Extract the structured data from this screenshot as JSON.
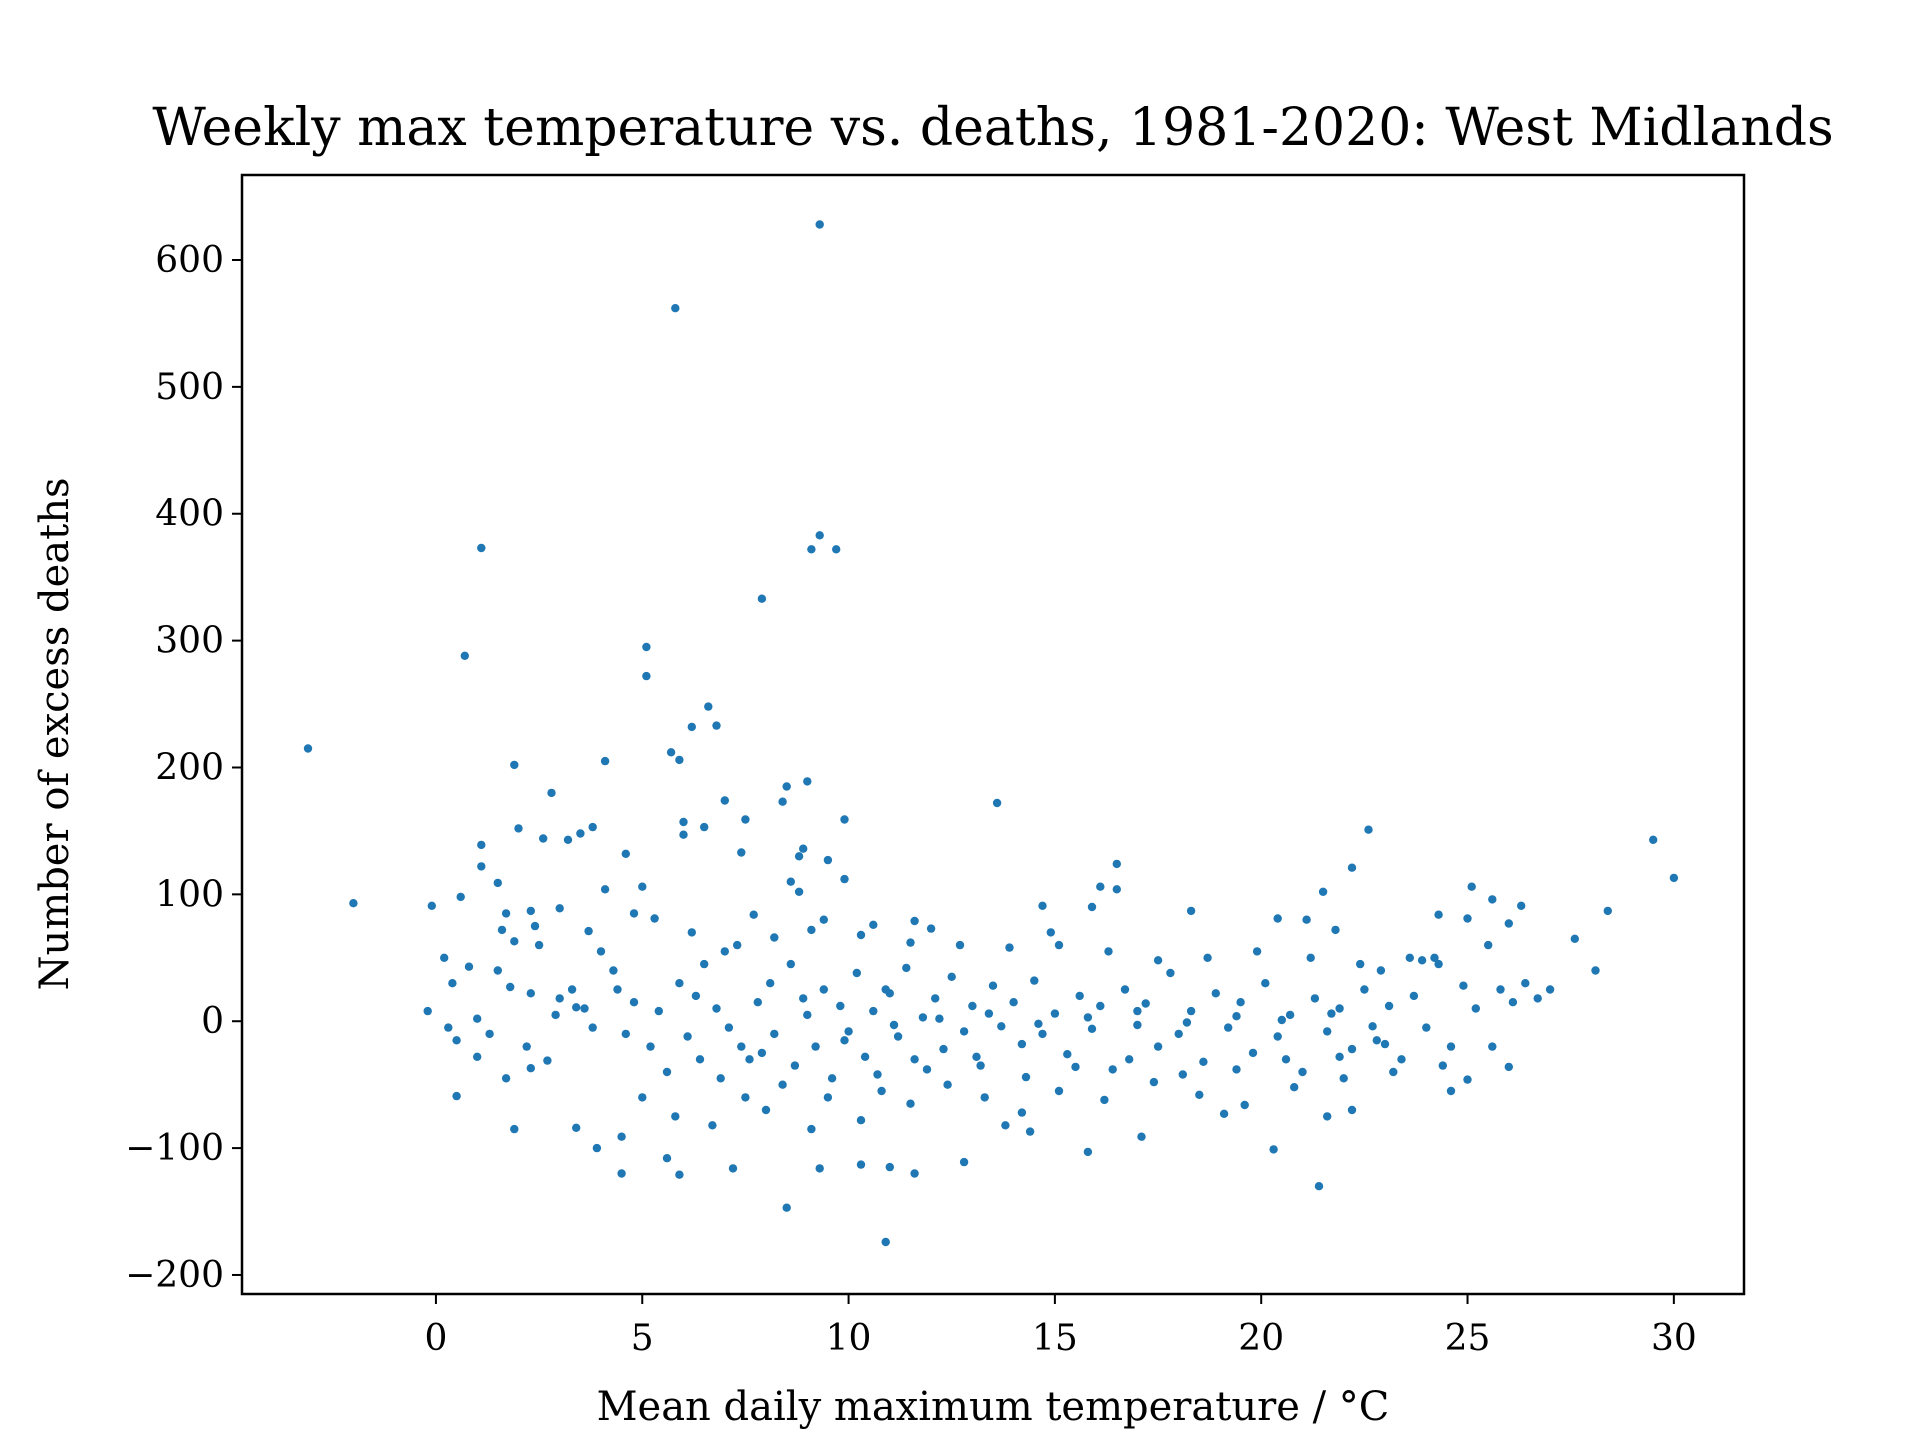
{
  "chart_data": {
    "type": "scatter",
    "title": "Weekly max temperature vs. deaths, 1981-2020: West Midlands",
    "xlabel": "Mean daily maximum temperature / °C",
    "ylabel": "Number of excess deaths",
    "xlim": [
      -4.7,
      31.7
    ],
    "ylim": [
      -215,
      667
    ],
    "xticks": [
      0,
      5,
      10,
      15,
      20,
      25,
      30
    ],
    "xtick_labels": [
      "0",
      "5",
      "10",
      "15",
      "20",
      "25",
      "30"
    ],
    "yticks": [
      -200,
      -100,
      0,
      100,
      200,
      300,
      400,
      500,
      600
    ],
    "ytick_labels": [
      "−200",
      "−100",
      "0",
      "100",
      "200",
      "300",
      "400",
      "500",
      "600"
    ],
    "grid": false,
    "marker_color": "#1f77b4",
    "series": [
      {
        "points": [
          [
            9.3,
            628
          ],
          [
            5.8,
            562
          ],
          [
            9.3,
            383
          ],
          [
            9.1,
            372
          ],
          [
            9.7,
            372
          ],
          [
            1.1,
            373
          ],
          [
            7.9,
            333
          ],
          [
            0.7,
            288
          ],
          [
            5.1,
            295
          ],
          [
            5.1,
            272
          ],
          [
            6.6,
            248
          ],
          [
            6.8,
            233
          ],
          [
            6.2,
            232
          ],
          [
            -3.1,
            215
          ],
          [
            5.7,
            212
          ],
          [
            5.9,
            206
          ],
          [
            1.9,
            202
          ],
          [
            4.1,
            205
          ],
          [
            9.0,
            189
          ],
          [
            8.5,
            185
          ],
          [
            2.8,
            180
          ],
          [
            7.0,
            174
          ],
          [
            8.4,
            173
          ],
          [
            13.6,
            172
          ],
          [
            9.9,
            159
          ],
          [
            7.5,
            159
          ],
          [
            6.0,
            157
          ],
          [
            6.5,
            153
          ],
          [
            3.8,
            153
          ],
          [
            2.0,
            152
          ],
          [
            22.6,
            151
          ],
          [
            6.0,
            147
          ],
          [
            3.5,
            148
          ],
          [
            3.2,
            143
          ],
          [
            2.6,
            144
          ],
          [
            29.5,
            143
          ],
          [
            1.1,
            139
          ],
          [
            8.9,
            136
          ],
          [
            7.4,
            133
          ],
          [
            4.6,
            132
          ],
          [
            8.8,
            130
          ],
          [
            9.5,
            127
          ],
          [
            16.5,
            124
          ],
          [
            1.1,
            122
          ],
          [
            22.2,
            121
          ],
          [
            30.0,
            113
          ],
          [
            9.9,
            112
          ],
          [
            8.6,
            110
          ],
          [
            1.5,
            109
          ],
          [
            5.0,
            106
          ],
          [
            25.1,
            106
          ],
          [
            16.1,
            106
          ],
          [
            4.1,
            104
          ],
          [
            16.5,
            104
          ],
          [
            8.8,
            102
          ],
          [
            21.5,
            102
          ],
          [
            0.6,
            98
          ],
          [
            25.6,
            96
          ],
          [
            -2.0,
            93
          ],
          [
            -0.1,
            91
          ],
          [
            14.7,
            91
          ],
          [
            26.3,
            91
          ],
          [
            15.9,
            90
          ],
          [
            3.0,
            89
          ],
          [
            2.3,
            87
          ],
          [
            28.4,
            87
          ],
          [
            18.3,
            87
          ],
          [
            7.7,
            84
          ],
          [
            24.3,
            84
          ],
          [
            25.0,
            81
          ],
          [
            4.8,
            85
          ],
          [
            9.4,
            80
          ],
          [
            20.4,
            81
          ],
          [
            21.1,
            80
          ],
          [
            11.6,
            79
          ],
          [
            5.3,
            81
          ],
          [
            26.0,
            77
          ],
          [
            2.4,
            75
          ],
          [
            10.6,
            76
          ],
          [
            12.0,
            73
          ],
          [
            1.6,
            72
          ],
          [
            3.7,
            71
          ],
          [
            21.8,
            72
          ],
          [
            6.2,
            70
          ],
          [
            14.9,
            70
          ],
          [
            1.9,
            63
          ],
          [
            0.8,
            43
          ],
          [
            1.8,
            27
          ],
          [
            2.3,
            22
          ],
          [
            3.0,
            18
          ],
          [
            3.4,
            11
          ],
          [
            1.0,
            2
          ],
          [
            -0.2,
            8
          ],
          [
            0.3,
            -5
          ],
          [
            0.5,
            -15
          ],
          [
            1.0,
            -28
          ],
          [
            1.7,
            -45
          ],
          [
            2.3,
            -37
          ],
          [
            2.7,
            -31
          ],
          [
            0.5,
            -59
          ],
          [
            1.9,
            -85
          ],
          [
            3.4,
            -84
          ],
          [
            3.9,
            -100
          ],
          [
            4.5,
            -91
          ],
          [
            4.5,
            -120
          ],
          [
            5.6,
            -108
          ],
          [
            5.9,
            -121
          ],
          [
            7.2,
            -116
          ],
          [
            8.5,
            -147
          ],
          [
            10.9,
            -174
          ],
          [
            11.0,
            -115
          ],
          [
            11.6,
            -120
          ],
          [
            12.8,
            -111
          ],
          [
            15.8,
            -103
          ],
          [
            21.4,
            -130
          ],
          [
            20.3,
            -101
          ],
          [
            17.1,
            -91
          ],
          [
            19.1,
            -73
          ],
          [
            21.6,
            -75
          ],
          [
            22.2,
            -70
          ],
          [
            13.8,
            -82
          ],
          [
            14.4,
            -87
          ],
          [
            9.3,
            -116
          ],
          [
            10.3,
            -113
          ],
          [
            6.3,
            20
          ],
          [
            6.8,
            10
          ],
          [
            7.1,
            -5
          ],
          [
            7.4,
            -20
          ],
          [
            7.8,
            15
          ],
          [
            8.1,
            30
          ],
          [
            8.2,
            -10
          ],
          [
            8.6,
            45
          ],
          [
            8.7,
            -35
          ],
          [
            9.0,
            5
          ],
          [
            9.2,
            -20
          ],
          [
            9.4,
            25
          ],
          [
            9.6,
            -45
          ],
          [
            9.8,
            12
          ],
          [
            10.0,
            -8
          ],
          [
            10.2,
            38
          ],
          [
            10.4,
            -28
          ],
          [
            10.6,
            8
          ],
          [
            10.8,
            -55
          ],
          [
            11.0,
            22
          ],
          [
            11.2,
            -12
          ],
          [
            11.4,
            42
          ],
          [
            11.6,
            -30
          ],
          [
            11.8,
            3
          ],
          [
            12.1,
            18
          ],
          [
            12.3,
            -22
          ],
          [
            12.5,
            35
          ],
          [
            12.8,
            -8
          ],
          [
            13.0,
            12
          ],
          [
            13.2,
            -35
          ],
          [
            13.5,
            28
          ],
          [
            13.7,
            -4
          ],
          [
            14.0,
            15
          ],
          [
            14.2,
            -18
          ],
          [
            14.5,
            32
          ],
          [
            14.7,
            -10
          ],
          [
            15.0,
            6
          ],
          [
            15.3,
            -26
          ],
          [
            15.6,
            20
          ],
          [
            15.9,
            -6
          ],
          [
            16.1,
            12
          ],
          [
            16.4,
            -38
          ],
          [
            16.7,
            25
          ],
          [
            17.0,
            -3
          ],
          [
            17.2,
            14
          ],
          [
            17.5,
            -20
          ],
          [
            17.8,
            38
          ],
          [
            18.0,
            -10
          ],
          [
            18.3,
            8
          ],
          [
            18.6,
            -32
          ],
          [
            18.9,
            22
          ],
          [
            19.2,
            -5
          ],
          [
            19.5,
            15
          ],
          [
            19.8,
            -25
          ],
          [
            20.1,
            30
          ],
          [
            20.4,
            -12
          ],
          [
            20.7,
            5
          ],
          [
            21.0,
            -40
          ],
          [
            21.3,
            18
          ],
          [
            21.6,
            -8
          ],
          [
            21.9,
            10
          ],
          [
            22.2,
            -22
          ],
          [
            22.5,
            25
          ],
          [
            22.8,
            -15
          ],
          [
            23.1,
            12
          ],
          [
            23.4,
            -30
          ],
          [
            23.7,
            20
          ],
          [
            24.0,
            -5
          ],
          [
            24.3,
            45
          ],
          [
            24.6,
            -20
          ],
          [
            24.9,
            28
          ],
          [
            25.2,
            10
          ],
          [
            25.5,
            60
          ],
          [
            25.8,
            25
          ],
          [
            26.1,
            15
          ],
          [
            26.4,
            30
          ],
          [
            26.7,
            18
          ],
          [
            27.0,
            25
          ],
          [
            27.6,
            65
          ],
          [
            28.1,
            40
          ],
          [
            5.2,
            -20
          ],
          [
            5.4,
            8
          ],
          [
            5.6,
            -40
          ],
          [
            5.9,
            30
          ],
          [
            6.1,
            -12
          ],
          [
            4.3,
            40
          ],
          [
            4.6,
            -10
          ],
          [
            4.8,
            15
          ],
          [
            3.8,
            -5
          ],
          [
            3.3,
            25
          ],
          [
            2.9,
            5
          ],
          [
            2.2,
            -20
          ],
          [
            1.5,
            40
          ],
          [
            1.3,
            -10
          ],
          [
            0.4,
            30
          ],
          [
            0.2,
            50
          ],
          [
            7.3,
            60
          ],
          [
            8.0,
            -70
          ],
          [
            9.1,
            -85
          ],
          [
            10.3,
            -78
          ],
          [
            11.5,
            -65
          ],
          [
            12.4,
            -50
          ],
          [
            13.3,
            -60
          ],
          [
            14.2,
            -72
          ],
          [
            15.1,
            -55
          ],
          [
            16.2,
            -62
          ],
          [
            17.4,
            -48
          ],
          [
            18.5,
            -58
          ],
          [
            19.6,
            -66
          ],
          [
            20.8,
            -52
          ],
          [
            22.0,
            -45
          ],
          [
            23.2,
            -40
          ],
          [
            24.4,
            -35
          ],
          [
            25.6,
            -20
          ],
          [
            26.0,
            -36
          ],
          [
            24.6,
            -55
          ],
          [
            25.0,
            -46
          ],
          [
            23.6,
            50
          ],
          [
            23.9,
            48
          ],
          [
            24.2,
            50
          ],
          [
            22.9,
            40
          ],
          [
            22.4,
            45
          ],
          [
            21.2,
            50
          ],
          [
            19.9,
            55
          ],
          [
            18.7,
            50
          ],
          [
            17.5,
            48
          ],
          [
            16.3,
            55
          ],
          [
            15.1,
            60
          ],
          [
            13.9,
            58
          ],
          [
            12.7,
            60
          ],
          [
            11.5,
            62
          ],
          [
            10.3,
            68
          ],
          [
            9.1,
            72
          ],
          [
            8.2,
            66
          ],
          [
            7.0,
            55
          ],
          [
            6.5,
            45
          ],
          [
            6.9,
            -45
          ],
          [
            7.6,
            -30
          ],
          [
            8.4,
            -50
          ],
          [
            9.5,
            -60
          ],
          [
            10.7,
            -42
          ],
          [
            11.9,
            -38
          ],
          [
            13.1,
            -28
          ],
          [
            14.3,
            -44
          ],
          [
            15.5,
            -36
          ],
          [
            16.8,
            -30
          ],
          [
            18.1,
            -42
          ],
          [
            19.4,
            -38
          ],
          [
            20.6,
            -30
          ],
          [
            21.9,
            -28
          ],
          [
            23.0,
            -18
          ],
          [
            5.0,
            -60
          ],
          [
            5.8,
            -75
          ],
          [
            6.7,
            -82
          ],
          [
            7.5,
            -60
          ],
          [
            4.0,
            55
          ],
          [
            4.4,
            25
          ],
          [
            3.6,
            10
          ],
          [
            2.5,
            60
          ],
          [
            1.7,
            85
          ],
          [
            10.9,
            25
          ],
          [
            11.1,
            -3
          ],
          [
            12.2,
            2
          ],
          [
            13.4,
            6
          ],
          [
            14.6,
            -2
          ],
          [
            15.8,
            3
          ],
          [
            17.0,
            8
          ],
          [
            18.2,
            -1
          ],
          [
            19.4,
            4
          ],
          [
            20.5,
            1
          ],
          [
            21.7,
            6
          ],
          [
            22.7,
            -4
          ],
          [
            9.9,
            -15
          ],
          [
            8.9,
            18
          ],
          [
            7.9,
            -25
          ],
          [
            6.4,
            -30
          ]
        ]
      }
    ]
  }
}
